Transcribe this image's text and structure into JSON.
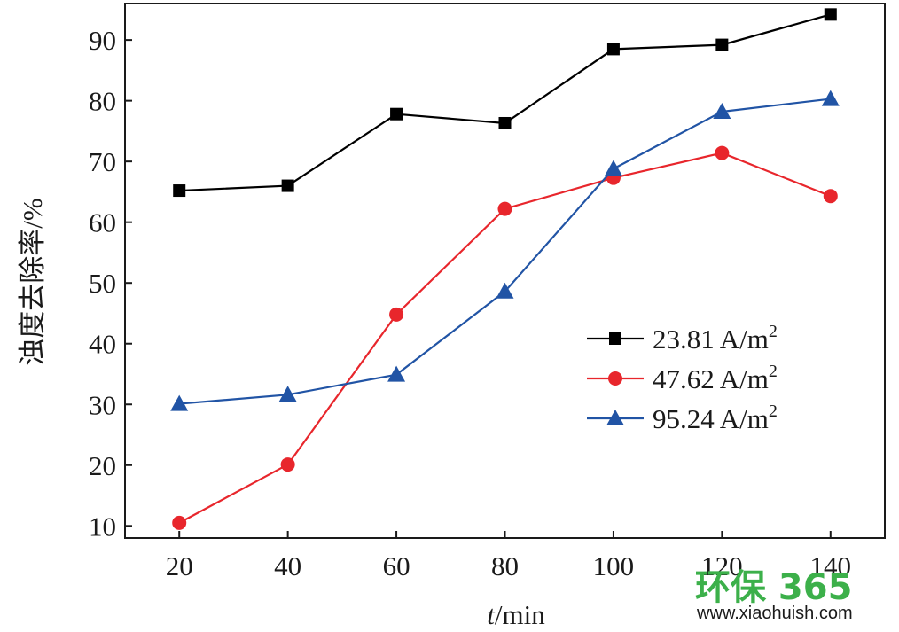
{
  "chart_data": {
    "type": "line",
    "title": "",
    "xlabel_italic": "t",
    "xlabel_rest": "/min",
    "ylabel": "浊度去除率/%",
    "x": [
      20,
      40,
      60,
      80,
      100,
      120,
      140
    ],
    "xlim": [
      10,
      150
    ],
    "ylim": [
      8,
      96
    ],
    "xticks": [
      20,
      40,
      60,
      80,
      100,
      120,
      140
    ],
    "yticks": [
      10,
      20,
      30,
      40,
      50,
      60,
      70,
      80,
      90
    ],
    "grid": false,
    "legend_position": "center-right",
    "series": [
      {
        "name": "23.81 A/m",
        "name_sup": "2",
        "marker": "square",
        "color": "#000000",
        "values": [
          65.2,
          66.0,
          77.8,
          76.3,
          88.5,
          89.2,
          94.2
        ]
      },
      {
        "name": "47.62 A/m",
        "name_sup": "2",
        "marker": "circle",
        "color": "#e8262c",
        "values": [
          10.5,
          20.1,
          44.8,
          62.2,
          67.3,
          71.4,
          64.3
        ]
      },
      {
        "name": "95.24 A/m",
        "name_sup": "2",
        "marker": "triangle",
        "color": "#2154a5",
        "values": [
          30.1,
          31.6,
          34.9,
          48.6,
          68.8,
          78.2,
          80.3
        ]
      }
    ]
  },
  "watermark": {
    "logo_text": "环保 365",
    "url": "www.xiaohuish.com",
    "color": "#3cb04a"
  }
}
